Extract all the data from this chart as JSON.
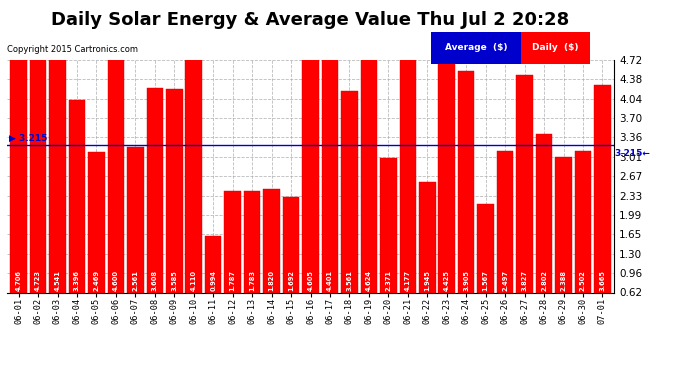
{
  "title": "Daily Solar Energy & Average Value Thu Jul 2 20:28",
  "copyright": "Copyright 2015 Cartronics.com",
  "categories": [
    "06-01",
    "06-02",
    "06-03",
    "06-04",
    "06-05",
    "06-06",
    "06-07",
    "06-08",
    "06-09",
    "06-10",
    "06-11",
    "06-12",
    "06-13",
    "06-14",
    "06-15",
    "06-16",
    "06-17",
    "06-18",
    "06-19",
    "06-20",
    "06-21",
    "06-22",
    "06-23",
    "06-24",
    "06-25",
    "06-26",
    "06-27",
    "06-28",
    "06-29",
    "06-30",
    "07-01"
  ],
  "values": [
    4.706,
    4.723,
    4.541,
    3.396,
    2.469,
    4.6,
    2.561,
    3.608,
    3.585,
    4.11,
    0.994,
    1.787,
    1.783,
    1.82,
    1.692,
    4.605,
    4.401,
    3.561,
    4.624,
    2.371,
    4.177,
    1.945,
    4.425,
    3.905,
    1.567,
    2.497,
    3.827,
    2.802,
    2.388,
    2.502,
    3.665
  ],
  "average": 3.215,
  "bar_color": "#FF0000",
  "avg_line_color": "#0000CC",
  "background_color": "#FFFFFF",
  "plot_bg_color": "#FFFFFF",
  "grid_color": "#AAAAAA",
  "title_fontsize": 13,
  "ylim": [
    0.62,
    4.72
  ],
  "yticks": [
    0.62,
    0.96,
    1.3,
    1.65,
    1.99,
    2.33,
    2.67,
    3.01,
    3.36,
    3.7,
    4.04,
    4.38,
    4.72
  ],
  "legend_avg_color": "#0000CC",
  "legend_daily_color": "#FF0000",
  "avg_label_left": "▶ 3.215",
  "avg_label_right": "3.215←"
}
